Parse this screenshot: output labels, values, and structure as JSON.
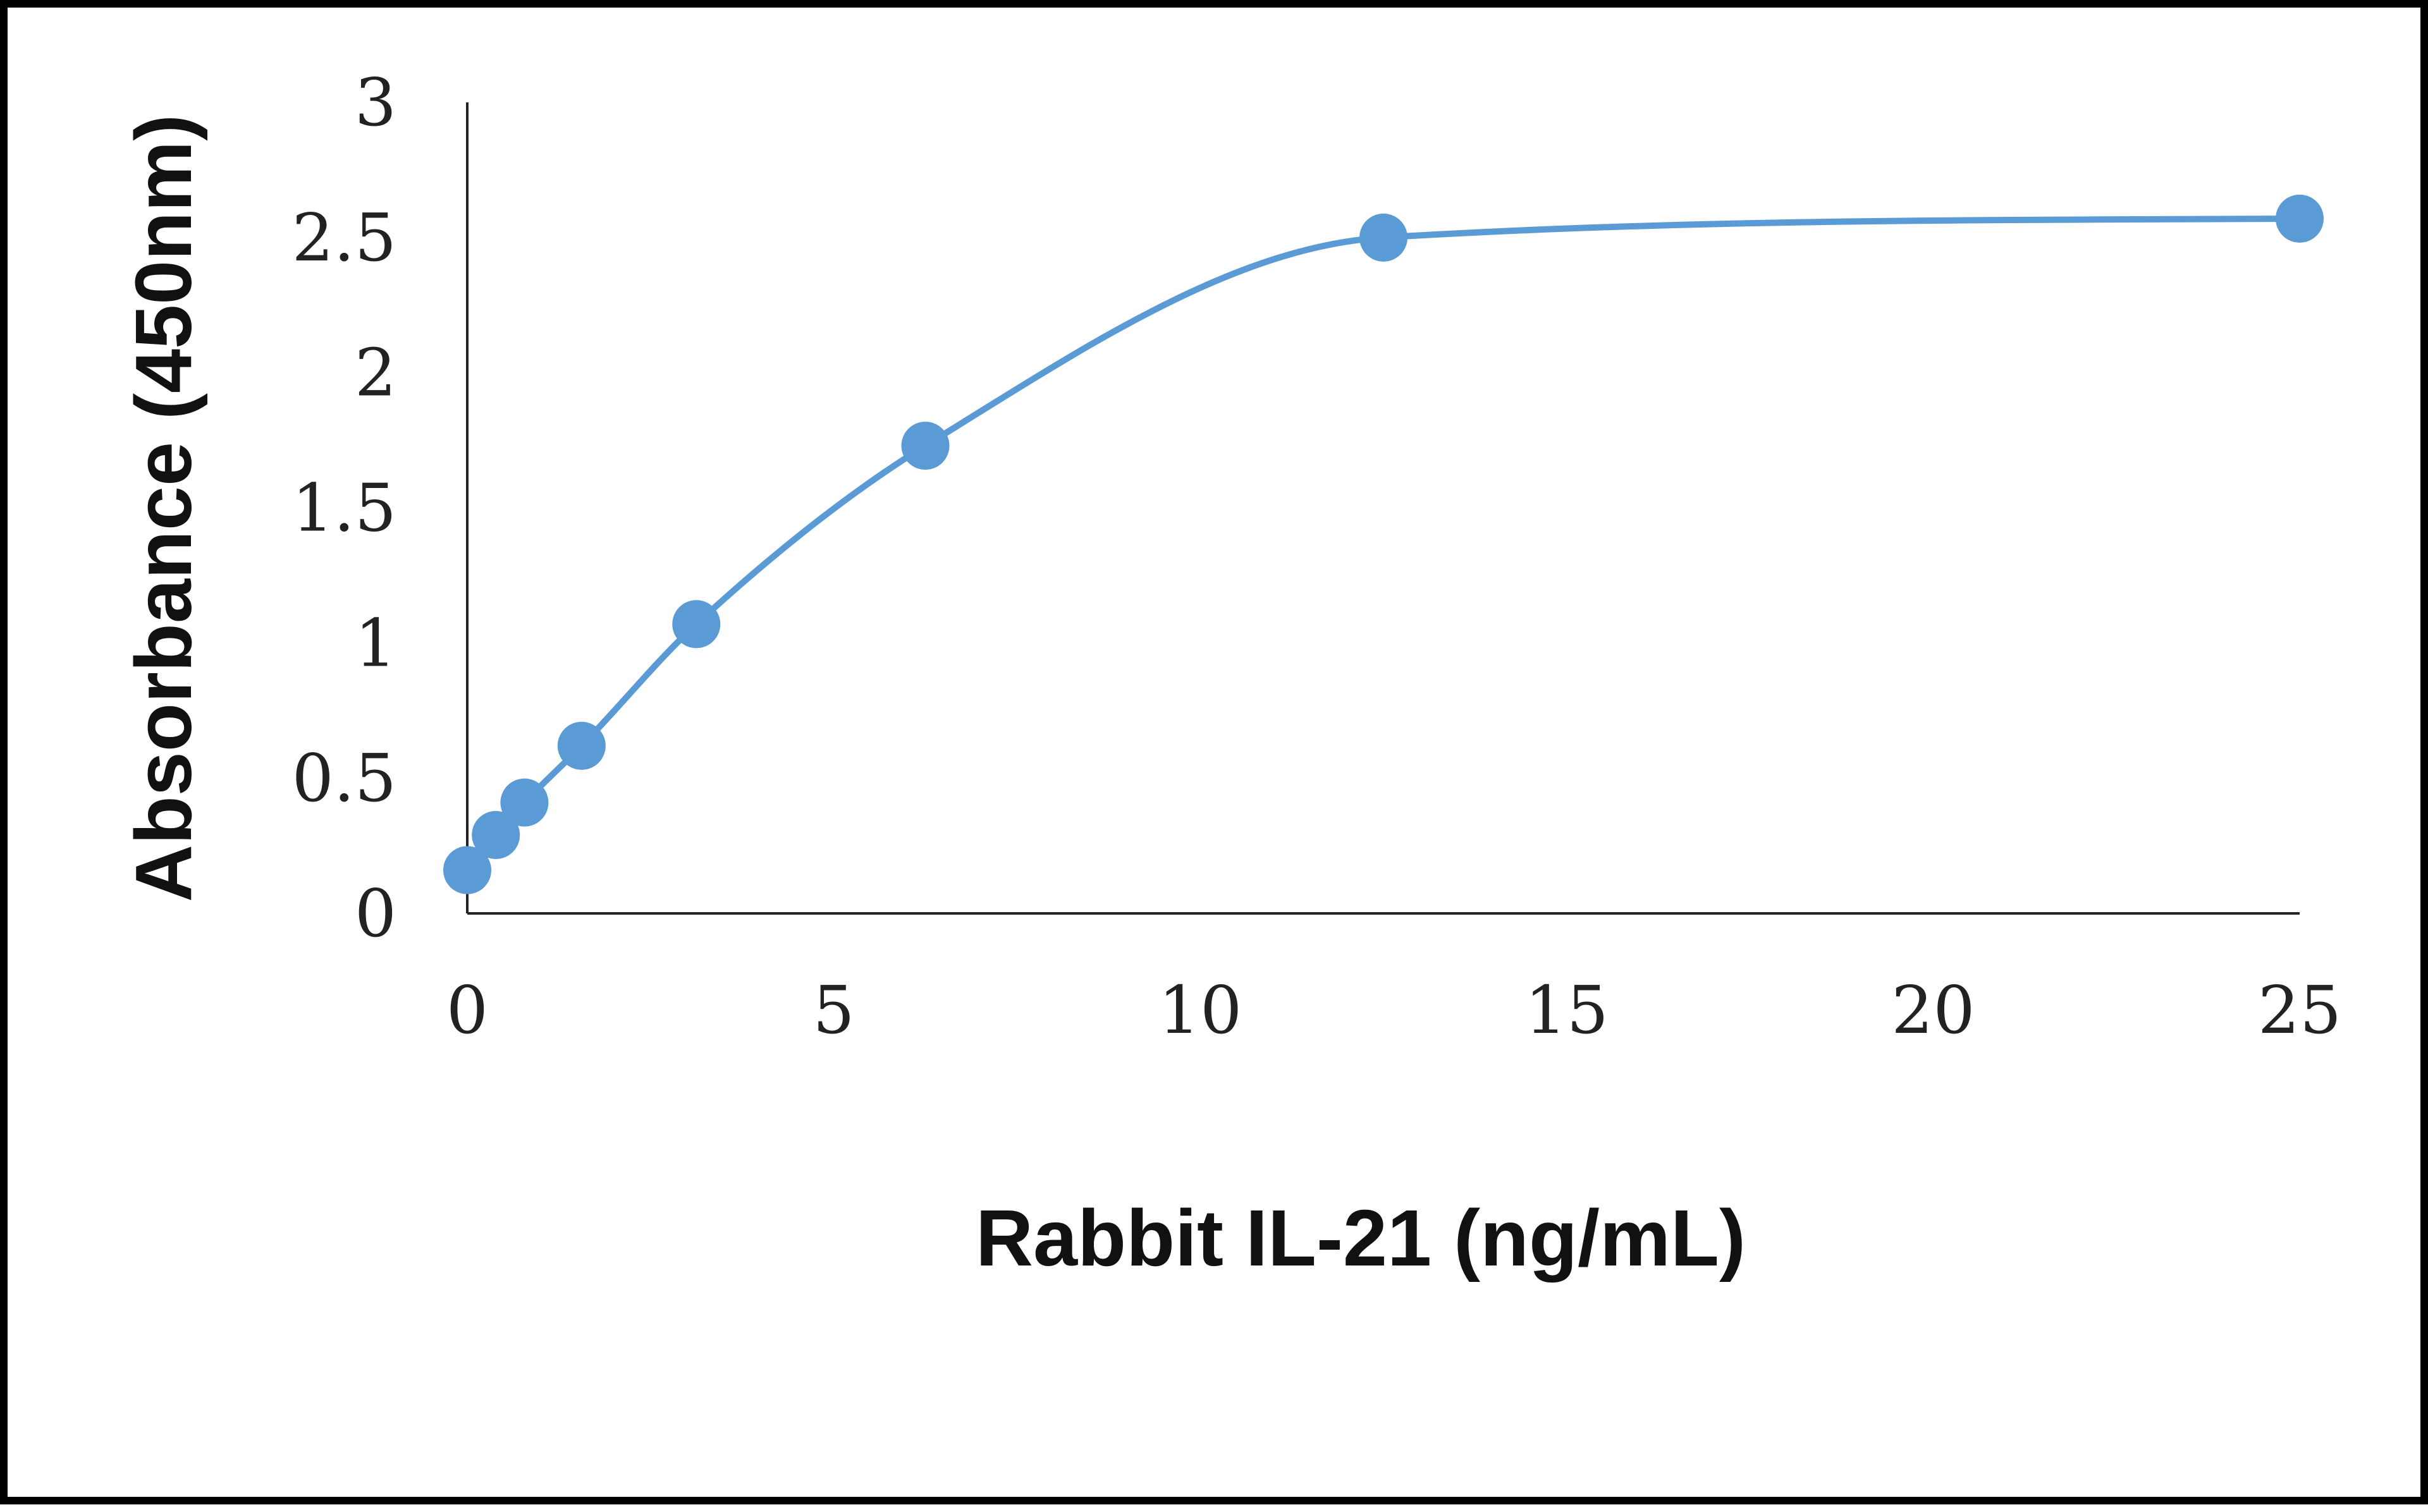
{
  "chart_data": {
    "type": "line",
    "title": "",
    "xlabel": "Rabbit IL-21 (ng/mL)",
    "ylabel": "Absorbance (450nm)",
    "xlim": [
      0,
      25
    ],
    "ylim": [
      0,
      3
    ],
    "x_ticks": [
      "0",
      "5",
      "10",
      "15",
      "20",
      "25"
    ],
    "y_ticks": [
      "0",
      "0.5",
      "1",
      "1.5",
      "2",
      "2.5",
      "3"
    ],
    "grid": false,
    "legend": "none",
    "smooth": true,
    "series": [
      {
        "color": "#5b9bd5",
        "x": [
          0,
          0.39,
          0.78,
          1.56,
          3.125,
          6.25,
          12.5,
          25
        ],
        "y": [
          0.16,
          0.29,
          0.41,
          0.62,
          1.07,
          1.73,
          2.5,
          2.57
        ]
      }
    ]
  }
}
